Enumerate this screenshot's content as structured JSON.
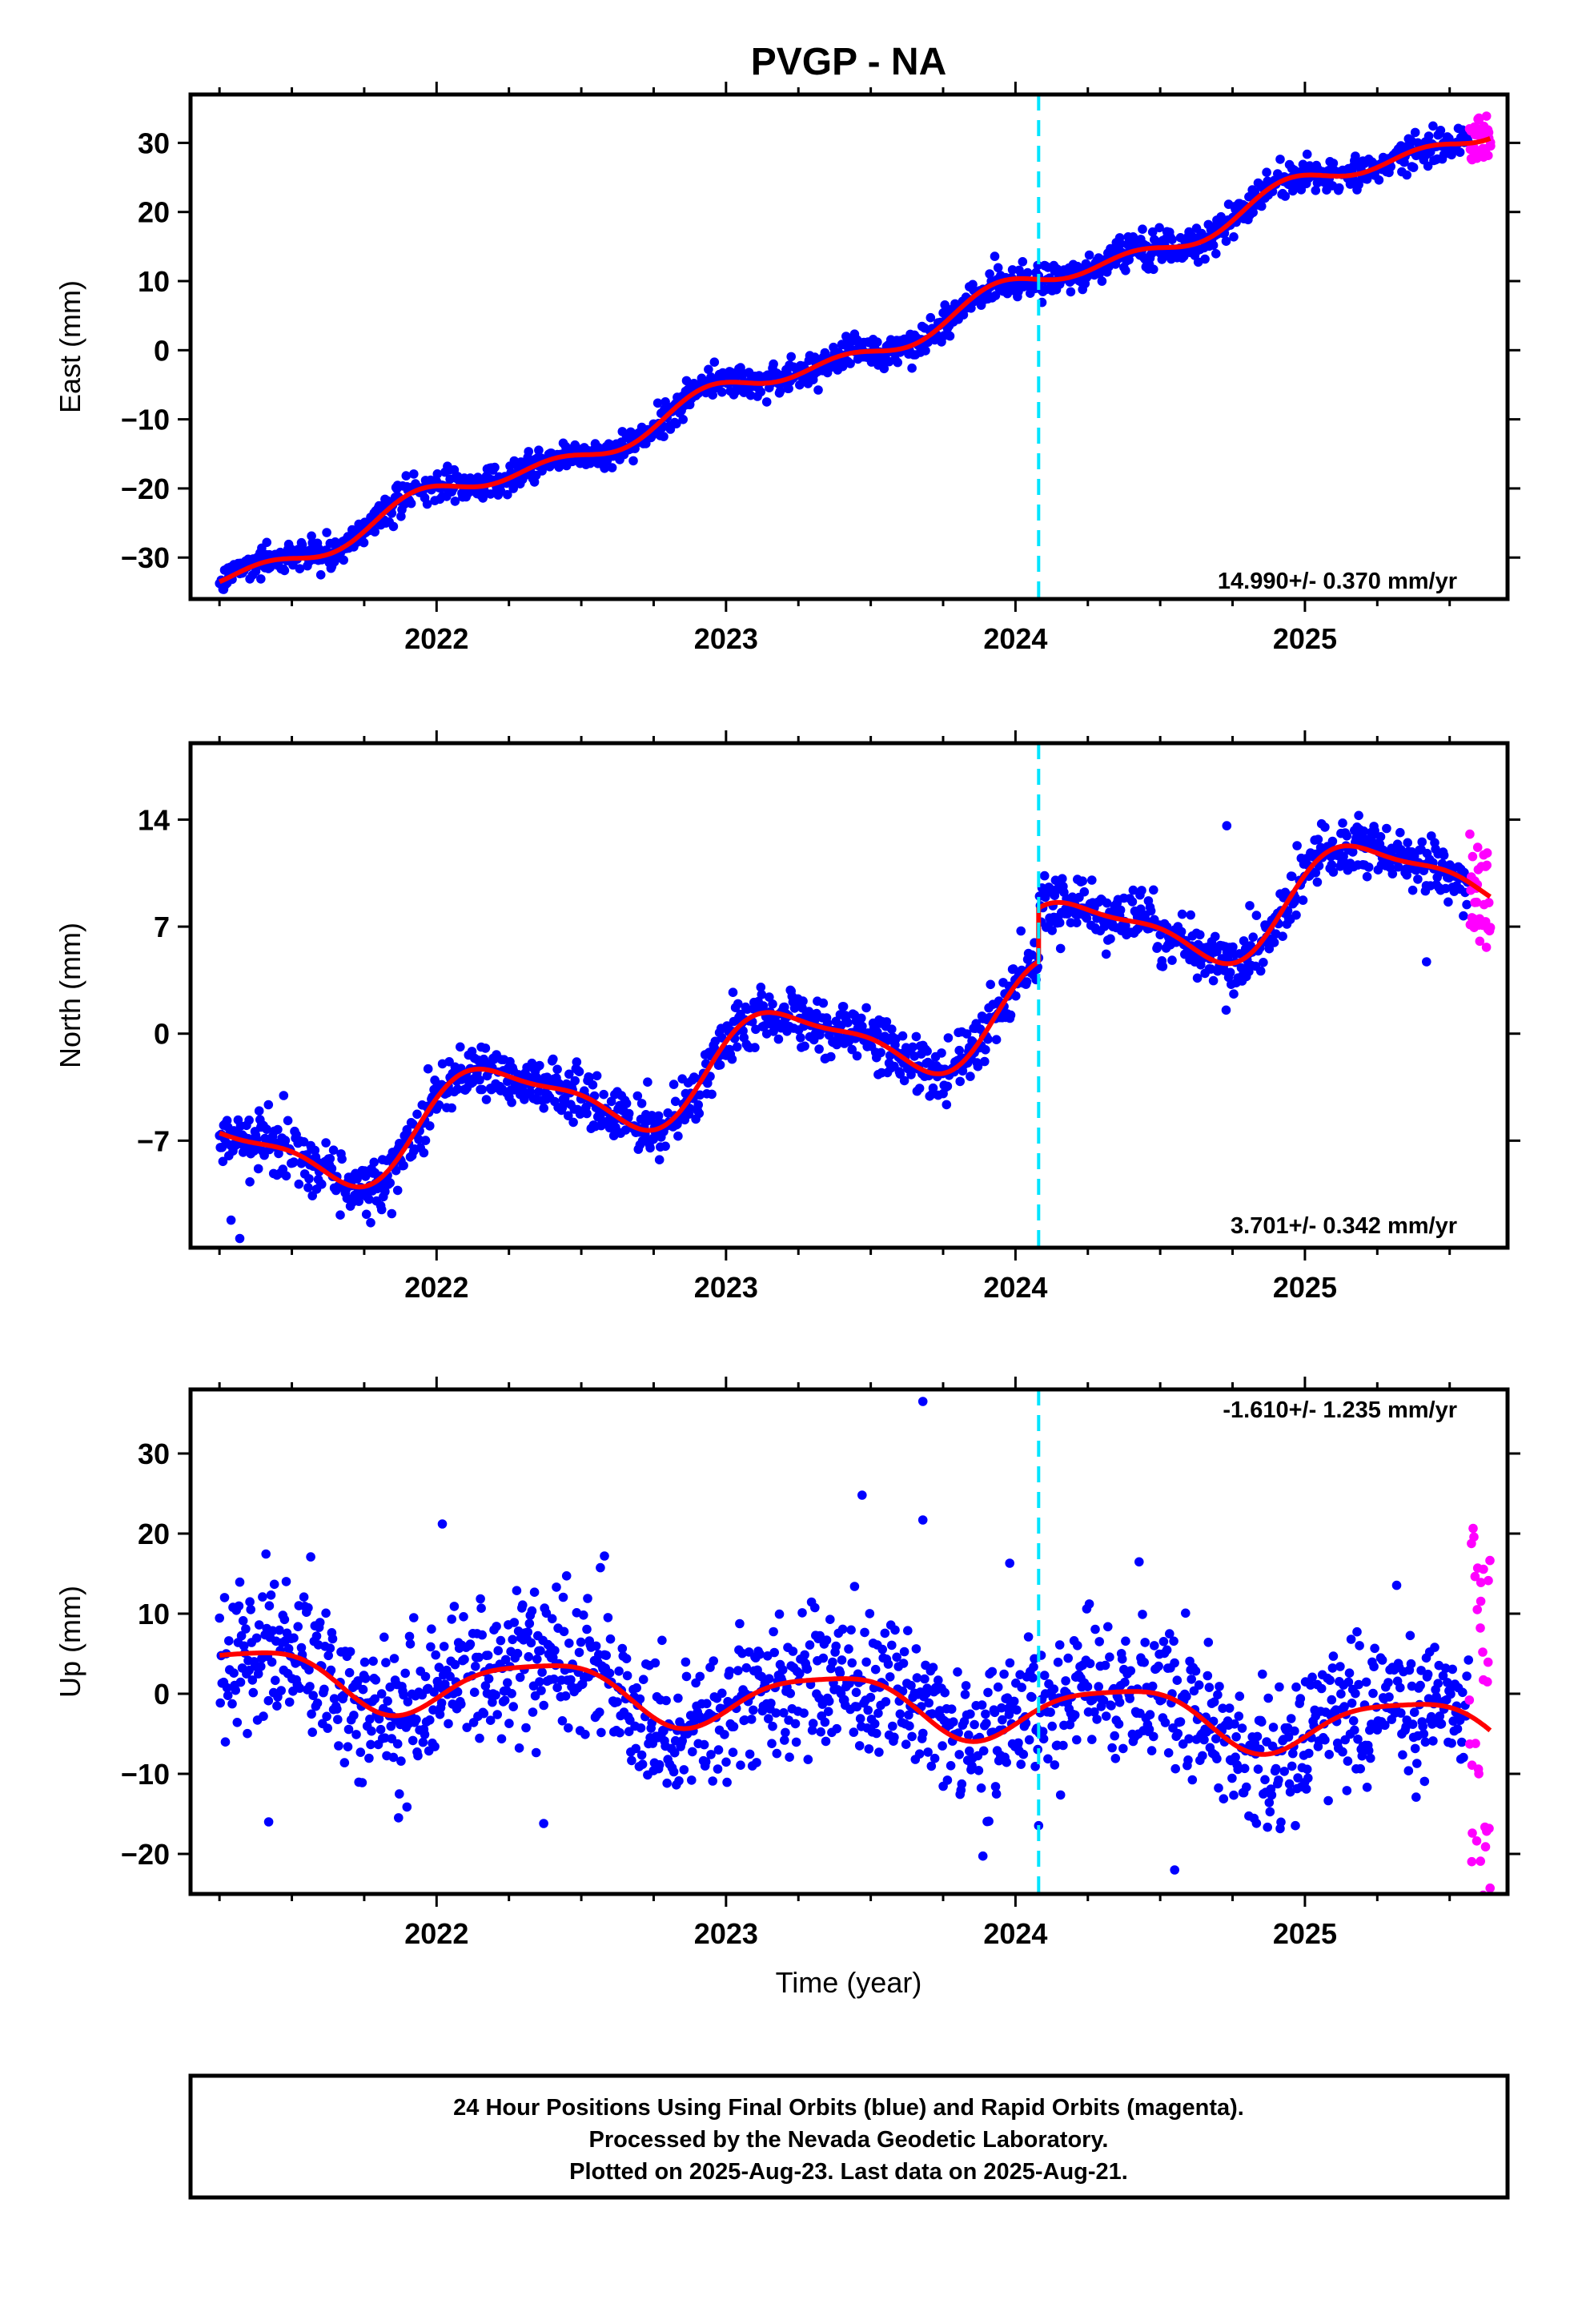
{
  "page": {
    "title": "PVGP - NA",
    "x_axis_label": "Time (year)"
  },
  "footer": {
    "lines": [
      "24 Hour Positions Using Final Orbits (blue) and Rapid Orbits (magenta).",
      "Processed by the Nevada Geodetic Laboratory.",
      "Plotted on 2025-Aug-23. Last data on 2025-Aug-21."
    ]
  },
  "colors": {
    "final_orbits": "#0000ff",
    "rapid_orbits": "#ff00ff",
    "model_fit": "#ff0000",
    "equipment_change": "#00e5ff",
    "frame": "#000000"
  },
  "chart_data": [
    {
      "type": "scatter",
      "name": "east",
      "ylabel": "East (mm)",
      "rate_label": "14.990+/- 0.370 mm/yr",
      "xlim": [
        2021.15,
        2025.7
      ],
      "ylim": [
        -36,
        37
      ],
      "x_ticks": [
        2022,
        2023,
        2024,
        2025
      ],
      "y_ticks": [
        -30,
        -20,
        -10,
        0,
        10,
        20,
        30
      ],
      "grid": false,
      "start": 2021.25,
      "end_final": 2025.565,
      "end": 2025.64,
      "offset_epoch": 2024.08,
      "trend": {
        "ref_epoch": 2021.25,
        "ref_value": -33,
        "rate": 14.99
      },
      "offset": 0,
      "annual_amp": 1.5,
      "annual_phase": 1.5,
      "semiannual_amp": 1.2,
      "semiannual_phase": 2.6,
      "noise_sd": 1.2,
      "outliers": [],
      "rapid_spread": 3.5
    },
    {
      "type": "scatter",
      "name": "north",
      "ylabel": "North (mm)",
      "rate_label": "3.701+/- 0.342 mm/yr",
      "xlim": [
        2021.15,
        2025.7
      ],
      "ylim": [
        -14,
        19
      ],
      "x_ticks": [
        2022,
        2023,
        2024,
        2025
      ],
      "y_ticks": [
        -7,
        0,
        7,
        14
      ],
      "grid": false,
      "start": 2021.25,
      "end_final": 2025.565,
      "end": 2025.64,
      "offset_epoch": 2024.08,
      "trend": {
        "ref_epoch": 2021.25,
        "ref_value": -8.5,
        "rate": 3.7
      },
      "offset": 3.5,
      "annual_amp": 2.8,
      "annual_phase": 0.3,
      "semiannual_amp": 0.8,
      "semiannual_phase": 1.0,
      "noise_sd": 0.95,
      "outliers": [
        [
          2021.32,
          -13.4
        ],
        [
          2025.42,
          4.7
        ],
        [
          2024.73,
          13.6
        ],
        [
          2021.29,
          -12.2
        ]
      ],
      "rapid_spread": 3.5
    },
    {
      "type": "scatter",
      "name": "up",
      "ylabel": "Up (mm)",
      "rate_label": "-1.610+/- 1.235 mm/yr",
      "xlim": [
        2021.15,
        2025.7
      ],
      "ylim": [
        -25,
        38
      ],
      "x_ticks": [
        2022,
        2023,
        2024,
        2025
      ],
      "y_ticks": [
        -20,
        -10,
        0,
        10,
        20,
        30
      ],
      "grid": false,
      "start": 2021.25,
      "end_final": 2025.565,
      "end": 2025.64,
      "offset_epoch": 2024.08,
      "trend": {
        "ref_epoch": 2021.25,
        "ref_value": 2.5,
        "rate": -1.61
      },
      "offset": 0,
      "annual_amp": 3.5,
      "annual_phase": -0.7,
      "semiannual_amp": 0.8,
      "semiannual_phase": 0.5,
      "noise_sd": 4.6,
      "outliers": [
        [
          2023.68,
          36.5
        ],
        [
          2023.47,
          24.8
        ],
        [
          2023.68,
          21.7
        ],
        [
          2022.02,
          21.2
        ],
        [
          2021.42,
          -16.0
        ],
        [
          2022.37,
          -16.2
        ],
        [
          2024.55,
          -22.0
        ],
        [
          2023.98,
          16.3
        ],
        [
          2022.58,
          17.2
        ]
      ],
      "rapid_spread": 24
    }
  ]
}
